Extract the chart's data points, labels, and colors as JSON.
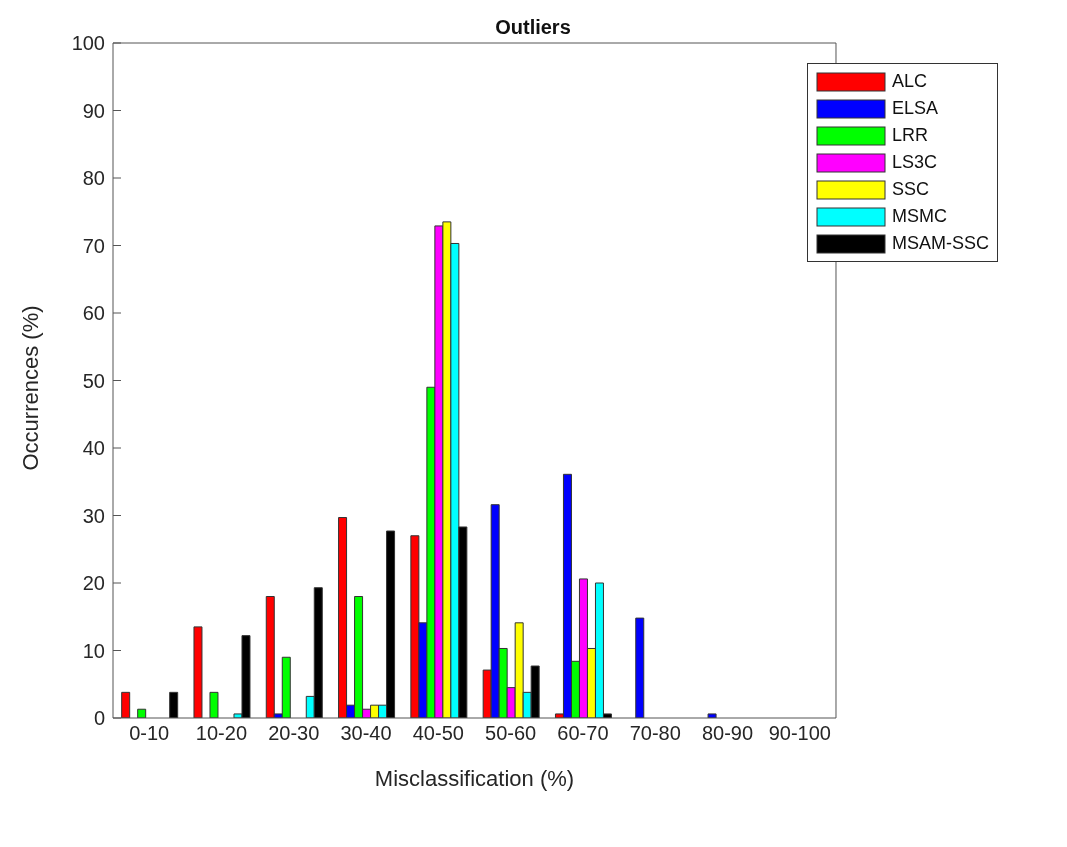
{
  "chart_data": {
    "type": "bar",
    "title": "Outliers",
    "xlabel": "Misclassification (%)",
    "ylabel": "Occurrences (%)",
    "categories": [
      "0-10",
      "10-20",
      "20-30",
      "30-40",
      "40-50",
      "50-60",
      "60-70",
      "70-80",
      "80-90",
      "90-100"
    ],
    "series": [
      {
        "name": "ALC",
        "color": "#ff0000",
        "values": [
          3.8,
          13.5,
          18,
          29.7,
          27,
          7.1,
          0.6,
          0,
          0,
          0
        ]
      },
      {
        "name": "ELSA",
        "color": "#0000ff",
        "values": [
          0,
          0,
          0.6,
          1.9,
          14.1,
          31.6,
          36.1,
          14.8,
          0.6,
          0
        ]
      },
      {
        "name": "LRR",
        "color": "#00ff00",
        "values": [
          1.3,
          3.8,
          9,
          18,
          49,
          10.3,
          8.4,
          0,
          0,
          0
        ]
      },
      {
        "name": "LS3C",
        "color": "#ff00ff",
        "values": [
          0,
          0,
          0,
          1.3,
          72.9,
          4.5,
          20.6,
          0,
          0,
          0
        ]
      },
      {
        "name": "SSC",
        "color": "#ffff00",
        "values": [
          0,
          0,
          0,
          1.9,
          73.5,
          14.1,
          10.3,
          0,
          0,
          0
        ]
      },
      {
        "name": "MSMC",
        "color": "#00ffff",
        "values": [
          0,
          0.6,
          3.2,
          1.9,
          70.3,
          3.8,
          20,
          0,
          0,
          0
        ]
      },
      {
        "name": "MSAM-SSC",
        "color": "#000000",
        "values": [
          3.8,
          12.2,
          19.3,
          27.7,
          28.3,
          7.7,
          0.6,
          0,
          0,
          0
        ]
      }
    ],
    "ylim": [
      0,
      100
    ],
    "yticks": [
      0,
      10,
      20,
      30,
      40,
      50,
      60,
      70,
      80,
      90,
      100
    ],
    "grid": false,
    "legend": "top right"
  }
}
